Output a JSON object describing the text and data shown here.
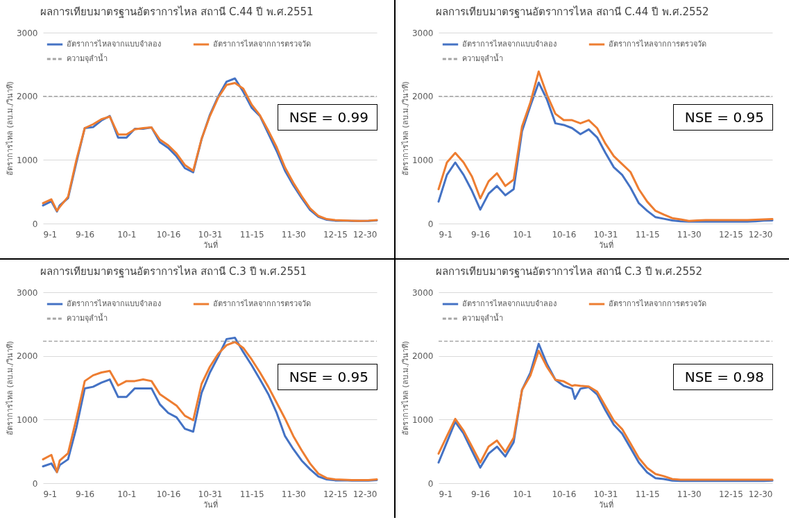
{
  "chart_data": [
    {
      "type": "line",
      "title": "ผลการเทียบมาตรฐานอัตราการไหล สถานี C.44 ปี พ.ศ.2551",
      "xlabel": "วันที่",
      "ylabel": "อัตราการไหล (ลบ.ม./วินาที)",
      "x": [
        "--09-01",
        "--09-04",
        "--09-06",
        "--09-07",
        "--09-10",
        "--09-13",
        "--09-16",
        "--09-19",
        "--09-22",
        "--09-25",
        "--09-28",
        "--10-01",
        "--10-04",
        "--10-07",
        "--10-10",
        "--10-13",
        "--10-16",
        "--10-19",
        "--10-22",
        "--10-25",
        "--10-28",
        "--10-31",
        "--11-03",
        "--11-06",
        "--11-09",
        "--11-12",
        "--11-15",
        "--11-18",
        "--11-21",
        "--11-24",
        "--11-27",
        "--11-30",
        "--12-03",
        "--12-06",
        "--12-09",
        "--12-12",
        "--12-15",
        "--12-18",
        "--12-21",
        "--12-24",
        "--12-27",
        "--12-30"
      ],
      "series": [
        {
          "name": "อัตราการไหลจากแบบจำลอง",
          "color": "#4472c4",
          "values": [
            285,
            350,
            190,
            285,
            400,
            960,
            1500,
            1515,
            1620,
            1690,
            1350,
            1350,
            1490,
            1490,
            1510,
            1280,
            1190,
            1055,
            870,
            805,
            1325,
            1710,
            2000,
            2230,
            2280,
            2070,
            1820,
            1690,
            1415,
            1140,
            830,
            600,
            400,
            215,
            105,
            60,
            45,
            45,
            40,
            40,
            40,
            50
          ]
        },
        {
          "name": "อัตราการไหลจากการตรวจวัด",
          "color": "#ed7d31",
          "values": [
            320,
            380,
            200,
            260,
            420,
            1000,
            1500,
            1560,
            1640,
            1680,
            1400,
            1400,
            1480,
            1500,
            1510,
            1320,
            1230,
            1100,
            920,
            830,
            1330,
            1690,
            1980,
            2180,
            2210,
            2120,
            1870,
            1700,
            1460,
            1200,
            880,
            640,
            430,
            240,
            120,
            70,
            55,
            50,
            45,
            40,
            45,
            55
          ]
        }
      ],
      "ref_lines": [
        {
          "axis": "y",
          "value": 2000,
          "label": "ความจุลำน้ำ",
          "color": "#a5a5a5",
          "line_style": "dashed"
        }
      ],
      "annotations": [
        "NSE = 0.99"
      ],
      "xlim": [
        "--09-01",
        "--12-30"
      ],
      "xticks": [
        {
          "value": "--09-01",
          "label": "9-1"
        },
        {
          "value": "--09-16",
          "label": "9-16"
        },
        {
          "value": "--10-01",
          "label": "10-1"
        },
        {
          "value": "--10-16",
          "label": "10-16"
        },
        {
          "value": "--10-31",
          "label": "10-31"
        },
        {
          "value": "--11-15",
          "label": "11-15"
        },
        {
          "value": "--11-30",
          "label": "11-30"
        },
        {
          "value": "--12-15",
          "label": "12-15"
        },
        {
          "value": "--12-30",
          "label": "12-30"
        }
      ],
      "ylim": [
        0,
        3000
      ],
      "yticks": [
        0,
        1000,
        2000,
        3000
      ],
      "grid": "y",
      "legend": "top left"
    },
    {
      "type": "line",
      "title": "ผลการเทียบมาตรฐานอัตราการไหล สถานี C.44 ปี พ.ศ.2552",
      "xlabel": "วันที่",
      "ylabel": "อัตราการไหล (ลบ.ม./วินาที)",
      "x": [
        "--09-01",
        "--09-04",
        "--09-07",
        "--09-10",
        "--09-13",
        "--09-16",
        "--09-19",
        "--09-22",
        "--09-25",
        "--09-28",
        "--10-01",
        "--10-04",
        "--10-07",
        "--10-10",
        "--10-13",
        "--10-16",
        "--10-19",
        "--10-22",
        "--10-25",
        "--10-28",
        "--10-31",
        "--11-03",
        "--11-06",
        "--11-09",
        "--11-12",
        "--11-15",
        "--11-18",
        "--11-21",
        "--11-24",
        "--11-27",
        "--11-30",
        "--12-03",
        "--12-06",
        "--12-09",
        "--12-12",
        "--12-15",
        "--12-18",
        "--12-21",
        "--12-24",
        "--12-27",
        "--12-30"
      ],
      "series": [
        {
          "name": "อัตราการไหลจากแบบจำลอง",
          "color": "#4472c4",
          "values": [
            345,
            765,
            960,
            765,
            515,
            220,
            470,
            590,
            445,
            540,
            1450,
            1850,
            2215,
            1945,
            1575,
            1550,
            1500,
            1405,
            1480,
            1355,
            1110,
            885,
            765,
            565,
            320,
            200,
            100,
            75,
            50,
            35,
            30,
            30,
            30,
            30,
            30,
            30,
            30,
            30,
            35,
            45,
            50
          ]
        },
        {
          "name": "อัตราการไหลจากการตรวจวัด",
          "color": "#ed7d31",
          "values": [
            540,
            960,
            1110,
            960,
            740,
            395,
            665,
            790,
            590,
            690,
            1525,
            1900,
            2390,
            2020,
            1725,
            1625,
            1625,
            1575,
            1625,
            1500,
            1255,
            1060,
            935,
            810,
            540,
            345,
            200,
            140,
            85,
            65,
            40,
            50,
            55,
            55,
            55,
            55,
            55,
            55,
            60,
            65,
            70
          ]
        }
      ],
      "ref_lines": [
        {
          "axis": "y",
          "value": 2000,
          "label": "ความจุลำน้ำ",
          "color": "#a5a5a5",
          "line_style": "dashed"
        }
      ],
      "annotations": [
        "NSE = 0.95"
      ],
      "xlim": [
        "--09-01",
        "--12-30"
      ],
      "xticks": [
        {
          "value": "--09-01",
          "label": "9-1"
        },
        {
          "value": "--09-16",
          "label": "9-16"
        },
        {
          "value": "--10-01",
          "label": "10-1"
        },
        {
          "value": "--10-16",
          "label": "10-16"
        },
        {
          "value": "--10-31",
          "label": "10-31"
        },
        {
          "value": "--11-15",
          "label": "11-15"
        },
        {
          "value": "--11-30",
          "label": "11-30"
        },
        {
          "value": "--12-15",
          "label": "12-15"
        },
        {
          "value": "--12-30",
          "label": "12-30"
        }
      ],
      "ylim": [
        0,
        3000
      ],
      "yticks": [
        0,
        1000,
        2000,
        3000
      ],
      "grid": "y",
      "legend": "top left"
    },
    {
      "type": "line",
      "title": "ผลการเทียบมาตรฐานอัตราการไหล สถานี C.3 ปี พ.ศ.2551",
      "xlabel": "วันที่",
      "ylabel": "อัตราการไหล (ลบ.ม./วินาที)",
      "x": [
        "--09-01",
        "--09-04",
        "--09-06",
        "--09-07",
        "--09-10",
        "--09-13",
        "--09-16",
        "--09-19",
        "--09-22",
        "--09-25",
        "--09-28",
        "--10-01",
        "--10-04",
        "--10-07",
        "--10-10",
        "--10-13",
        "--10-16",
        "--10-19",
        "--10-22",
        "--10-25",
        "--10-28",
        "--10-31",
        "--11-03",
        "--11-06",
        "--11-09",
        "--11-12",
        "--11-15",
        "--11-18",
        "--11-21",
        "--11-24",
        "--11-27",
        "--11-30",
        "--12-03",
        "--12-06",
        "--12-09",
        "--12-12",
        "--12-15",
        "--12-18",
        "--12-21",
        "--12-24",
        "--12-27",
        "--12-30"
      ],
      "series": [
        {
          "name": "อัตราการไหลจากแบบจำลอง",
          "color": "#4472c4",
          "values": [
            265,
            310,
            175,
            285,
            375,
            875,
            1490,
            1515,
            1580,
            1630,
            1355,
            1355,
            1490,
            1490,
            1490,
            1240,
            1105,
            1035,
            855,
            810,
            1420,
            1740,
            1990,
            2265,
            2285,
            2060,
            1855,
            1630,
            1400,
            1105,
            740,
            535,
            355,
            220,
            105,
            60,
            45,
            45,
            40,
            40,
            40,
            50
          ]
        },
        {
          "name": "อัตราการไหลจากการตรวจวัด",
          "color": "#ed7d31",
          "values": [
            375,
            445,
            175,
            355,
            470,
            1015,
            1605,
            1695,
            1740,
            1765,
            1535,
            1605,
            1605,
            1630,
            1605,
            1400,
            1310,
            1220,
            1060,
            990,
            1560,
            1830,
            2035,
            2170,
            2220,
            2125,
            1945,
            1740,
            1515,
            1265,
            1015,
            740,
            515,
            310,
            150,
            80,
            60,
            55,
            50,
            50,
            50,
            60
          ]
        }
      ],
      "ref_lines": [
        {
          "axis": "y",
          "value": 2230,
          "label": "ความจุลำน้ำ",
          "color": "#a5a5a5",
          "line_style": "dashed"
        }
      ],
      "annotations": [
        "NSE = 0.95"
      ],
      "xlim": [
        "--09-01",
        "--12-30"
      ],
      "xticks": [
        {
          "value": "--09-01",
          "label": "9-1"
        },
        {
          "value": "--09-16",
          "label": "9-16"
        },
        {
          "value": "--10-01",
          "label": "10-1"
        },
        {
          "value": "--10-16",
          "label": "10-16"
        },
        {
          "value": "--10-31",
          "label": "10-31"
        },
        {
          "value": "--11-15",
          "label": "11-15"
        },
        {
          "value": "--11-30",
          "label": "11-30"
        },
        {
          "value": "--12-15",
          "label": "12-15"
        },
        {
          "value": "--12-30",
          "label": "12-30"
        }
      ],
      "ylim": [
        0,
        3000
      ],
      "yticks": [
        0,
        1000,
        2000,
        3000
      ],
      "grid": "y",
      "legend": "top left"
    },
    {
      "type": "line",
      "title": "ผลการเทียบมาตรฐานอัตราการไหล สถานี C.3 ปี พ.ศ.2552",
      "xlabel": "วันที่",
      "ylabel": "อัตราการไหล (ลบ.ม./วินาที)",
      "x": [
        "--09-01",
        "--09-04",
        "--09-07",
        "--09-10",
        "--09-13",
        "--09-16",
        "--09-19",
        "--09-22",
        "--09-25",
        "--09-28",
        "--10-01",
        "--10-04",
        "--10-07",
        "--10-10",
        "--10-13",
        "--10-16",
        "--10-19",
        "--10-20",
        "--10-22",
        "--10-25",
        "--10-28",
        "--10-31",
        "--11-03",
        "--11-06",
        "--11-09",
        "--11-12",
        "--11-15",
        "--11-18",
        "--11-21",
        "--11-24",
        "--11-27",
        "--11-30",
        "--12-03",
        "--12-06",
        "--12-09",
        "--12-12",
        "--12-15",
        "--12-18",
        "--12-21",
        "--12-24",
        "--12-27",
        "--12-30"
      ],
      "series": [
        {
          "name": "อัตราการไหลจากแบบจำลอง",
          "color": "#4472c4",
          "values": [
            325,
            645,
            965,
            780,
            510,
            245,
            465,
            575,
            420,
            645,
            1465,
            1735,
            2190,
            1870,
            1625,
            1530,
            1485,
            1325,
            1485,
            1510,
            1395,
            1145,
            920,
            780,
            555,
            325,
            170,
            80,
            65,
            40,
            35,
            35,
            35,
            35,
            35,
            35,
            35,
            35,
            35,
            35,
            35,
            40
          ]
        },
        {
          "name": "อัตราการไหลจากการตรวจวัด",
          "color": "#ed7d31",
          "values": [
            465,
            740,
            1010,
            825,
            575,
            325,
            575,
            670,
            490,
            715,
            1465,
            1690,
            2080,
            1825,
            1625,
            1600,
            1530,
            1540,
            1530,
            1520,
            1440,
            1210,
            985,
            850,
            625,
            395,
            240,
            145,
            110,
            65,
            55,
            55,
            55,
            55,
            55,
            55,
            55,
            55,
            55,
            55,
            55,
            55
          ]
        }
      ],
      "ref_lines": [
        {
          "axis": "y",
          "value": 2230,
          "label": "ความจุลำน้ำ",
          "color": "#a5a5a5",
          "line_style": "dashed"
        }
      ],
      "annotations": [
        "NSE = 0.98"
      ],
      "xlim": [
        "--09-01",
        "--12-30"
      ],
      "xticks": [
        {
          "value": "--09-01",
          "label": "9-1"
        },
        {
          "value": "--09-16",
          "label": "9-16"
        },
        {
          "value": "--10-01",
          "label": "10-1"
        },
        {
          "value": "--10-16",
          "label": "10-16"
        },
        {
          "value": "--10-31",
          "label": "10-31"
        },
        {
          "value": "--11-15",
          "label": "11-15"
        },
        {
          "value": "--11-30",
          "label": "11-30"
        },
        {
          "value": "--12-15",
          "label": "12-15"
        },
        {
          "value": "--12-30",
          "label": "12-30"
        }
      ],
      "ylim": [
        0,
        3000
      ],
      "yticks": [
        0,
        1000,
        2000,
        3000
      ],
      "grid": "y",
      "legend": "top left"
    }
  ]
}
